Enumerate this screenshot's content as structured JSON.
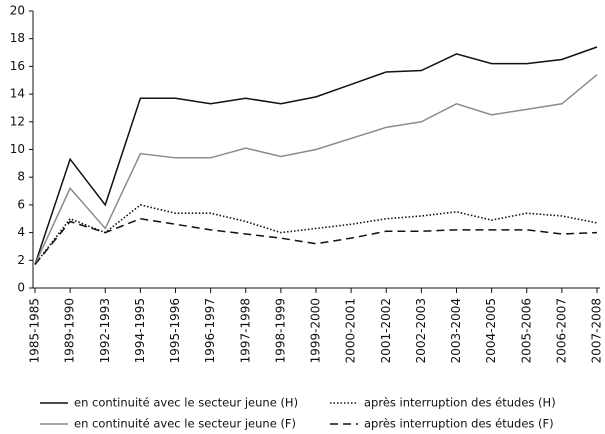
{
  "chart_data": {
    "type": "line",
    "categories": [
      "1985-1985",
      "1989-1990",
      "1992-1993",
      "1994-1995",
      "1995-1996",
      "1996-1997",
      "1997-1998",
      "1998-1999",
      "1999-2000",
      "2000-2001",
      "2001-2002",
      "2002-2003",
      "2003-2004",
      "2004-2005",
      "2005-2006",
      "2006-2007",
      "2007-2008"
    ],
    "series": [
      {
        "name": "en continuité avec le secteur jeune (H)",
        "color": "#111111",
        "dash": "solid",
        "values": [
          1.7,
          9.3,
          6.0,
          13.7,
          13.7,
          13.3,
          13.7,
          13.3,
          13.8,
          14.7,
          15.6,
          15.7,
          16.9,
          16.2,
          16.2,
          16.5,
          17.4
        ]
      },
      {
        "name": "après interruption des études (H)",
        "color": "#111111",
        "dash": "dotted",
        "values": [
          1.7,
          5.0,
          4.0,
          6.0,
          5.4,
          5.4,
          4.8,
          4.0,
          4.3,
          4.6,
          5.0,
          5.2,
          5.5,
          4.9,
          5.4,
          5.2,
          4.7
        ]
      },
      {
        "name": "en continuité avec le secteur jeune (F)",
        "color": "#8c8c8c",
        "dash": "solid",
        "values": [
          1.7,
          7.2,
          4.3,
          9.7,
          9.4,
          9.4,
          10.1,
          9.5,
          10.0,
          10.8,
          11.6,
          12.0,
          13.3,
          12.5,
          12.9,
          13.3,
          15.4
        ]
      },
      {
        "name": "après interruption des études (F)",
        "color": "#111111",
        "dash": "dashed",
        "values": [
          1.7,
          4.8,
          4.0,
          5.0,
          4.6,
          4.2,
          3.9,
          3.6,
          3.2,
          3.6,
          4.1,
          4.1,
          4.2,
          4.2,
          4.2,
          3.9,
          4.0
        ]
      }
    ],
    "ylim": [
      0,
      20
    ],
    "yticks": [
      0,
      2,
      4,
      6,
      8,
      10,
      12,
      14,
      16,
      18,
      20
    ],
    "grid": false,
    "legend": "bottom"
  }
}
